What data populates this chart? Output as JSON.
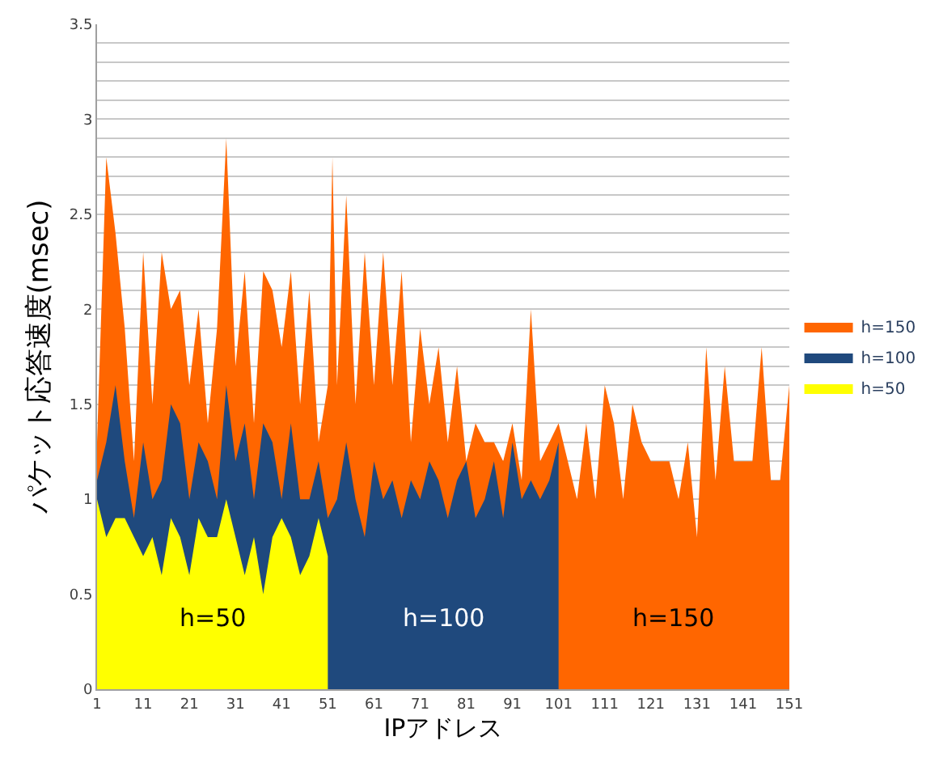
{
  "chart_data": {
    "type": "area",
    "xlabel": "IPアドレス",
    "ylabel": "パケット応答速度(msec)",
    "xlim": [
      1,
      151
    ],
    "xticks": [
      1,
      11,
      21,
      31,
      41,
      51,
      61,
      71,
      81,
      91,
      101,
      111,
      121,
      131,
      141,
      151
    ],
    "ylim": [
      0,
      3.5
    ],
    "yticks": [
      0,
      0.5,
      {
        "value": 0.8,
        "label": null
      },
      {
        "value": 0.9,
        "label": null
      },
      1,
      {
        "value": 1.1,
        "label": null
      },
      {
        "value": 1.2,
        "label": null
      },
      {
        "value": 1.3,
        "label": null
      },
      {
        "value": 1.4,
        "label": null
      },
      1.5,
      {
        "value": 1.6,
        "label": null
      },
      {
        "value": 1.7,
        "label": null
      },
      {
        "value": 1.8,
        "label": null
      },
      {
        "value": 1.9,
        "label": null
      },
      2,
      {
        "value": 2.1,
        "label": null
      },
      {
        "value": 2.2,
        "label": null
      },
      {
        "value": 2.3,
        "label": null
      },
      {
        "value": 2.4,
        "label": null
      },
      2.5,
      {
        "value": 2.6,
        "label": null
      },
      {
        "value": 2.7,
        "label": null
      },
      {
        "value": 2.8,
        "label": null
      },
      {
        "value": 2.9,
        "label": null
      },
      3,
      {
        "value": 3.1,
        "label": null
      },
      {
        "value": 3.2,
        "label": null
      },
      {
        "value": 3.3,
        "label": null
      },
      {
        "value": 3.4,
        "label": null
      },
      3.5
    ],
    "grid": "y",
    "legend": "right",
    "series": [
      {
        "name": "h=150",
        "color": "#ff6600",
        "x": [
          1,
          3,
          5,
          7,
          9,
          11,
          13,
          15,
          17,
          19,
          21,
          23,
          25,
          27,
          29,
          31,
          33,
          35,
          37,
          39,
          41,
          43,
          45,
          47,
          49,
          51,
          52,
          53,
          55,
          57,
          59,
          61,
          63,
          65,
          67,
          69,
          71,
          73,
          75,
          77,
          79,
          81,
          83,
          85,
          87,
          89,
          91,
          93,
          95,
          97,
          99,
          101,
          103,
          105,
          107,
          109,
          111,
          113,
          115,
          117,
          119,
          121,
          123,
          125,
          127,
          129,
          131,
          133,
          135,
          137,
          139,
          141,
          143,
          145,
          147,
          149,
          151
        ],
        "values": [
          1.3,
          2.8,
          2.4,
          1.9,
          1.2,
          2.3,
          1.5,
          2.3,
          2.0,
          2.1,
          1.6,
          2.0,
          1.4,
          1.9,
          2.9,
          1.7,
          2.2,
          1.4,
          2.2,
          2.1,
          1.8,
          2.2,
          1.5,
          2.1,
          1.3,
          1.6,
          2.8,
          1.6,
          2.6,
          1.5,
          2.3,
          1.6,
          2.3,
          1.6,
          2.2,
          1.3,
          1.9,
          1.5,
          1.8,
          1.3,
          1.7,
          1.2,
          1.4,
          1.3,
          1.3,
          1.2,
          1.4,
          1.1,
          2.0,
          1.2,
          1.3,
          1.4,
          1.2,
          1.0,
          1.4,
          1.0,
          1.6,
          1.4,
          1.0,
          1.5,
          1.3,
          1.2,
          1.2,
          1.2,
          1.0,
          1.3,
          0.8,
          1.8,
          1.1,
          1.7,
          1.2,
          1.2,
          1.2,
          1.8,
          1.1,
          1.1,
          1.6
        ]
      },
      {
        "name": "h=100",
        "color": "#1f497d",
        "x": [
          1,
          3,
          5,
          7,
          9,
          11,
          13,
          15,
          17,
          19,
          21,
          23,
          25,
          27,
          29,
          31,
          33,
          35,
          37,
          39,
          41,
          43,
          45,
          47,
          49,
          51,
          53,
          55,
          57,
          59,
          61,
          63,
          65,
          67,
          69,
          71,
          73,
          75,
          77,
          79,
          81,
          83,
          85,
          87,
          89,
          91,
          93,
          95,
          97,
          99,
          101
        ],
        "values": [
          1.1,
          1.3,
          1.6,
          1.2,
          0.9,
          1.3,
          1.0,
          1.1,
          1.5,
          1.4,
          1.0,
          1.3,
          1.2,
          1.0,
          1.6,
          1.2,
          1.4,
          1.0,
          1.4,
          1.3,
          1.0,
          1.4,
          1.0,
          1.0,
          1.2,
          0.9,
          1.0,
          1.3,
          1.0,
          0.8,
          1.2,
          1.0,
          1.1,
          0.9,
          1.1,
          1.0,
          1.2,
          1.1,
          0.9,
          1.1,
          1.2,
          0.9,
          1.0,
          1.2,
          0.9,
          1.3,
          1.0,
          1.1,
          1.0,
          1.1,
          1.3
        ]
      },
      {
        "name": "h=50",
        "color": "#ffff00",
        "x": [
          1,
          3,
          5,
          7,
          9,
          11,
          13,
          15,
          17,
          19,
          21,
          23,
          25,
          27,
          29,
          31,
          33,
          35,
          37,
          39,
          41,
          43,
          45,
          47,
          49,
          51
        ],
        "values": [
          1.0,
          0.8,
          0.9,
          0.9,
          0.8,
          0.7,
          0.8,
          0.6,
          0.9,
          0.8,
          0.6,
          0.9,
          0.8,
          0.8,
          1.0,
          0.8,
          0.6,
          0.8,
          0.5,
          0.8,
          0.9,
          0.8,
          0.6,
          0.7,
          0.9,
          0.7
        ]
      }
    ],
    "annotations": [
      "h=50",
      "h=100",
      "h=150"
    ]
  }
}
